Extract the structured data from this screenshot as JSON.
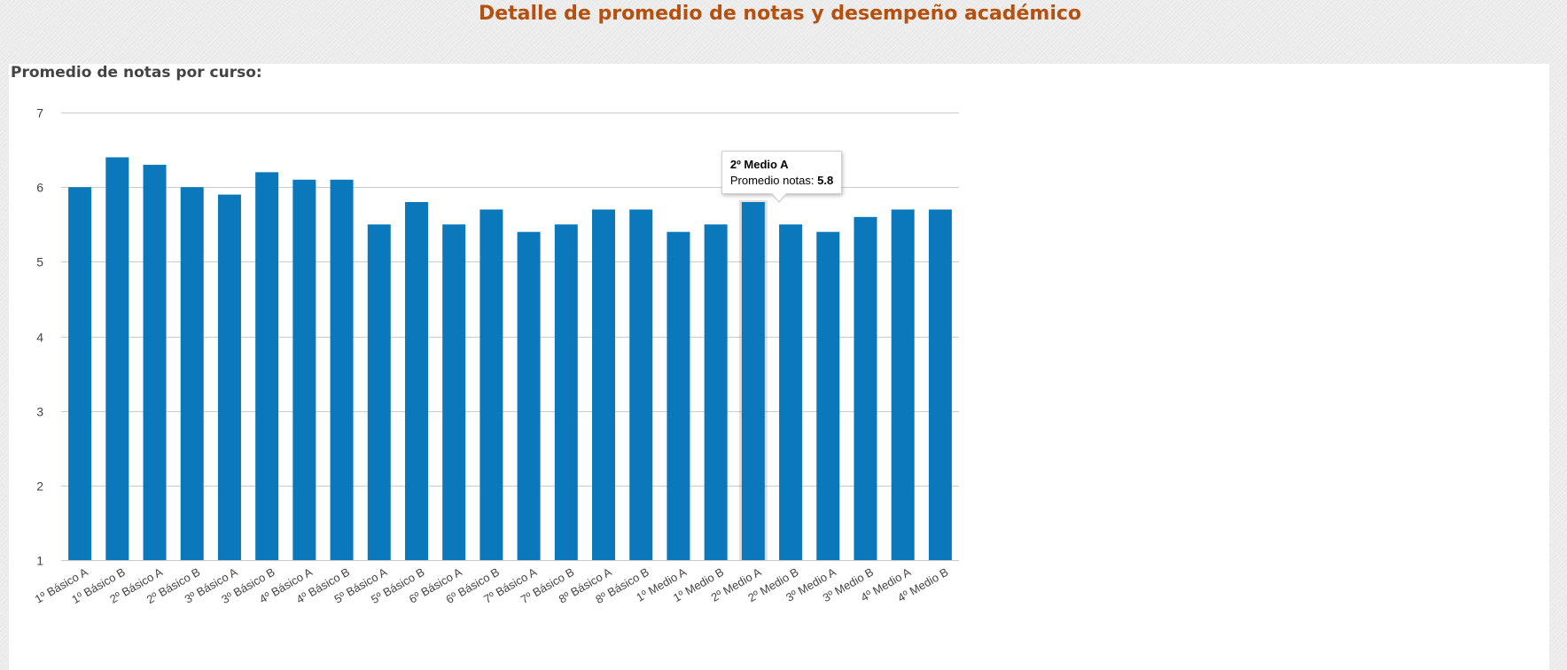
{
  "page": {
    "title": "Detalle de promedio de notas y desempeño académico",
    "section_title": "Promedio de notas por curso:"
  },
  "colors": {
    "title": "#b5500e",
    "bar": "#0a78bb",
    "bar_highlight": "#0a78bb",
    "grid": "#cccccc",
    "tick_text": "#444444"
  },
  "tooltip": {
    "title": "2º Medio A",
    "label": "Promedio notas:",
    "value": "5.8"
  },
  "chart_data": {
    "type": "bar",
    "title": "",
    "xlabel": "",
    "ylabel": "",
    "ylim": [
      1,
      7
    ],
    "yticks": [
      1,
      2,
      3,
      4,
      5,
      6,
      7
    ],
    "grid": true,
    "highlighted_category": "2º Medio A",
    "categories": [
      "1º Básico A",
      "1º Básico B",
      "2º Básico A",
      "2º Básico B",
      "3º Básico A",
      "3º Básico B",
      "4º Básico A",
      "4º Básico B",
      "5º Básico A",
      "5º Básico B",
      "6º Básico A",
      "6º Básico B",
      "7º Básico A",
      "7º Básico B",
      "8º Básico A",
      "8º Básico B",
      "1º Medio A",
      "1º Medio B",
      "2º Medio A",
      "2º Medio B",
      "3º Medio A",
      "3º Medio B",
      "4º Medio A",
      "4º Medio B"
    ],
    "series": [
      {
        "values": [
          6.0,
          6.4,
          6.3,
          6.0,
          5.9,
          6.2,
          6.1,
          6.1,
          5.5,
          5.8,
          5.5,
          5.7,
          5.4,
          5.5,
          5.7,
          5.7,
          5.4,
          5.5,
          5.8,
          5.5,
          5.4,
          5.6,
          5.7,
          5.7
        ]
      }
    ]
  }
}
